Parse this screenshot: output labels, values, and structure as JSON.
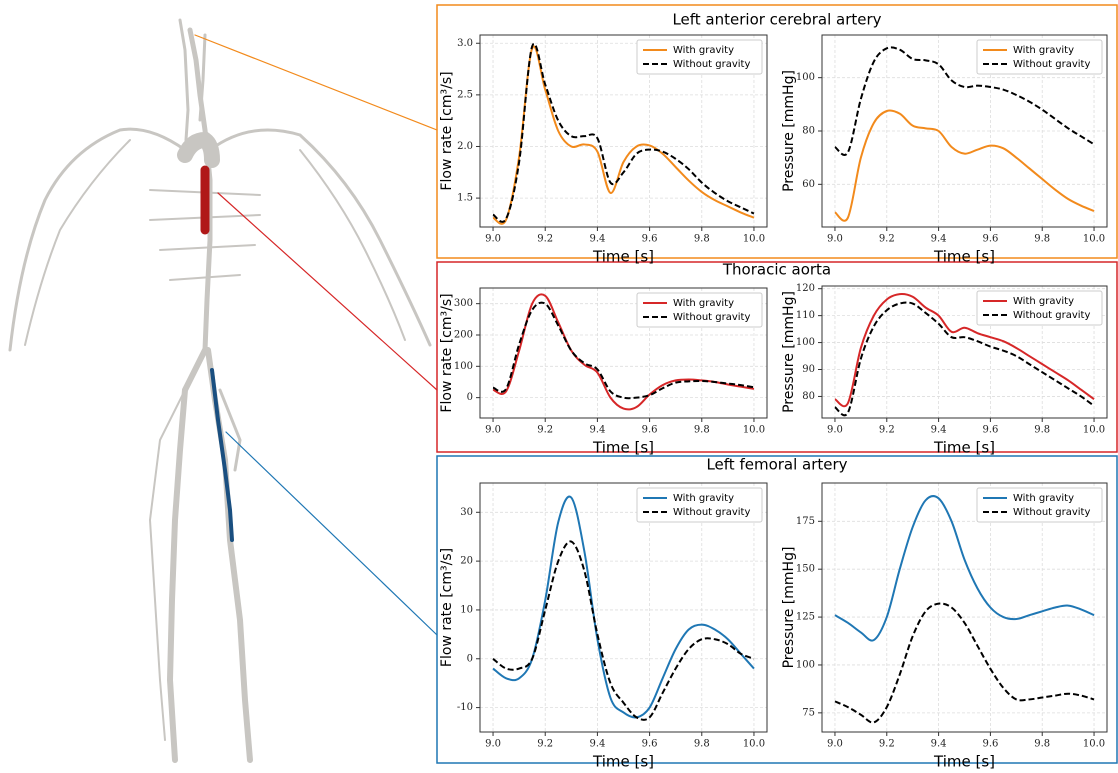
{
  "panels": [
    {
      "title": "Left anterior cerebral artery"
    },
    {
      "title": "Thoracic aorta"
    },
    {
      "title": "Left femoral artery"
    }
  ],
  "chart_data": [
    {
      "type": "line",
      "xlabel": "Time [s]",
      "ylabel": "Flow rate [cm³/s]",
      "legend": "upper right",
      "grid": true,
      "x": [
        9.0,
        9.05,
        9.1,
        9.15,
        9.2,
        9.25,
        9.3,
        9.35,
        9.4,
        9.45,
        9.5,
        9.55,
        9.6,
        9.65,
        9.7,
        9.75,
        9.8,
        9.85,
        9.9,
        9.95,
        10.0
      ],
      "xlim": [
        8.95,
        10.05
      ],
      "xticks": [
        {
          "value": 9,
          "label": "9.0"
        },
        9.2,
        9.4,
        9.6,
        9.8,
        {
          "value": 10,
          "label": "10.0"
        }
      ],
      "ylim": [
        1.22,
        3.08
      ],
      "yticks": [
        1.5,
        {
          "value": 2,
          "label": "2.0"
        },
        2.5,
        {
          "value": 3,
          "label": "3.0"
        }
      ],
      "series": [
        {
          "name": "With gravity",
          "color": "#f28a1c",
          "linestyle": "solid",
          "values": [
            1.31,
            1.29,
            1.9,
            2.95,
            2.55,
            2.15,
            2.0,
            2.02,
            1.95,
            1.55,
            1.85,
            2.0,
            2.01,
            1.93,
            1.8,
            1.67,
            1.56,
            1.48,
            1.42,
            1.36,
            1.31
          ]
        },
        {
          "name": "Without gravity",
          "color": "#000000",
          "linestyle": "dashed",
          "values": [
            1.34,
            1.3,
            1.85,
            2.97,
            2.6,
            2.25,
            2.1,
            2.1,
            2.08,
            1.65,
            1.75,
            1.93,
            1.97,
            1.95,
            1.88,
            1.78,
            1.65,
            1.55,
            1.47,
            1.41,
            1.35
          ]
        }
      ]
    },
    {
      "type": "line",
      "xlabel": "Time [s]",
      "ylabel": "Pressure [mmHg]",
      "legend": "upper right",
      "grid": true,
      "x": [
        9.0,
        9.05,
        9.1,
        9.15,
        9.2,
        9.25,
        9.3,
        9.35,
        9.4,
        9.45,
        9.5,
        9.55,
        9.6,
        9.65,
        9.7,
        9.75,
        9.8,
        9.85,
        9.9,
        9.95,
        10.0
      ],
      "xlim": [
        8.95,
        10.05
      ],
      "xticks": [
        {
          "value": 9,
          "label": "9.0"
        },
        9.2,
        9.4,
        9.6,
        9.8,
        {
          "value": 10,
          "label": "10.0"
        }
      ],
      "ylim": [
        44,
        116
      ],
      "yticks": [
        60,
        80,
        100
      ],
      "series": [
        {
          "name": "With gravity",
          "color": "#f28a1c",
          "linestyle": "solid",
          "values": [
            49.5,
            47.5,
            70,
            83,
            87.5,
            86.5,
            82,
            81,
            80,
            74,
            71.5,
            73,
            74.5,
            73.5,
            70,
            66,
            62,
            58,
            54.5,
            52,
            50
          ]
        },
        {
          "name": "Without gravity",
          "color": "#000000",
          "linestyle": "dashed",
          "values": [
            74,
            72,
            92,
            106,
            111,
            110.5,
            107,
            106.5,
            105,
            99,
            96.5,
            97,
            96.5,
            95.5,
            93.5,
            91,
            88,
            84.5,
            81,
            78,
            75
          ]
        }
      ]
    },
    {
      "type": "line",
      "xlabel": "Time [s]",
      "ylabel": "Flow rate [cm³/s]",
      "legend": "upper right",
      "grid": true,
      "x": [
        9.0,
        9.05,
        9.1,
        9.15,
        9.2,
        9.25,
        9.3,
        9.35,
        9.4,
        9.45,
        9.5,
        9.55,
        9.6,
        9.65,
        9.7,
        9.75,
        9.8,
        9.85,
        9.9,
        9.95,
        10.0
      ],
      "xlim": [
        8.95,
        10.05
      ],
      "xticks": [
        {
          "value": 9,
          "label": "9.0"
        },
        9.2,
        9.4,
        9.6,
        9.8,
        {
          "value": 10,
          "label": "10.0"
        }
      ],
      "ylim": [
        -65,
        350
      ],
      "yticks": [
        0,
        100,
        200,
        300
      ],
      "series": [
        {
          "name": "With gravity",
          "color": "#d62728",
          "linestyle": "solid",
          "values": [
            25,
            20,
            150,
            300,
            325,
            240,
            150,
            105,
            80,
            0,
            -35,
            -30,
            10,
            40,
            55,
            58,
            55,
            50,
            42,
            35,
            28
          ]
        },
        {
          "name": "Without gravity",
          "color": "#000000",
          "linestyle": "dashed",
          "values": [
            32,
            28,
            170,
            280,
            300,
            230,
            150,
            110,
            90,
            20,
            0,
            0,
            8,
            30,
            48,
            52,
            53,
            50,
            45,
            40,
            33
          ]
        }
      ]
    },
    {
      "type": "line",
      "xlabel": "Time [s]",
      "ylabel": "Pressure [mmHg]",
      "legend": "upper right",
      "grid": true,
      "x": [
        9.0,
        9.05,
        9.1,
        9.15,
        9.2,
        9.25,
        9.3,
        9.35,
        9.4,
        9.45,
        9.5,
        9.55,
        9.6,
        9.65,
        9.7,
        9.75,
        9.8,
        9.85,
        9.9,
        9.95,
        10.0
      ],
      "xlim": [
        8.95,
        10.05
      ],
      "xticks": [
        {
          "value": 9,
          "label": "9.0"
        },
        9.2,
        9.4,
        9.6,
        9.8,
        {
          "value": 10,
          "label": "10.0"
        }
      ],
      "ylim": [
        72,
        121
      ],
      "yticks": [
        80,
        90,
        100,
        110,
        120
      ],
      "series": [
        {
          "name": "With gravity",
          "color": "#d62728",
          "linestyle": "solid",
          "values": [
            79,
            77.5,
            98,
            110,
            116,
            118,
            117,
            113,
            110,
            104,
            105.5,
            103.5,
            102,
            100.5,
            98,
            95,
            92,
            89,
            86,
            82.5,
            79
          ]
        },
        {
          "name": "Without gravity",
          "color": "#000000",
          "linestyle": "dashed",
          "values": [
            76,
            74,
            94,
            106,
            112,
            114.5,
            114.5,
            111,
            107,
            102,
            102,
            100.5,
            98.5,
            97,
            95,
            92,
            89,
            86,
            83,
            80,
            76.5
          ]
        }
      ]
    },
    {
      "type": "line",
      "xlabel": "Time [s]",
      "ylabel": "Flow rate [cm³/s]",
      "legend": "upper right",
      "grid": true,
      "x": [
        9.0,
        9.05,
        9.1,
        9.15,
        9.2,
        9.25,
        9.3,
        9.35,
        9.4,
        9.45,
        9.5,
        9.55,
        9.6,
        9.65,
        9.7,
        9.75,
        9.8,
        9.85,
        9.9,
        9.95,
        10.0
      ],
      "xlim": [
        8.95,
        10.05
      ],
      "xticks": [
        {
          "value": 9,
          "label": "9.0"
        },
        9.2,
        9.4,
        9.6,
        9.8,
        {
          "value": 10,
          "label": "10.0"
        }
      ],
      "ylim": [
        -15,
        36
      ],
      "yticks": [
        -10,
        0,
        10,
        20,
        30
      ],
      "series": [
        {
          "name": "With gravity",
          "color": "#1f77b4",
          "linestyle": "solid",
          "values": [
            -2,
            -4,
            -4,
            0,
            12,
            28,
            33,
            22,
            4,
            -8,
            -11,
            -12,
            -10,
            -4,
            2,
            6,
            7,
            6,
            4,
            1,
            -2
          ]
        },
        {
          "name": "Without gravity",
          "color": "#000000",
          "linestyle": "dashed",
          "values": [
            0,
            -2,
            -2,
            0,
            10,
            20,
            24,
            18,
            5,
            -5,
            -9,
            -12,
            -12,
            -7,
            -2,
            2,
            4,
            4,
            3,
            1,
            0
          ]
        }
      ]
    },
    {
      "type": "line",
      "xlabel": "Time [s]",
      "ylabel": "Pressure [mmHg]",
      "legend": "upper right",
      "grid": true,
      "x": [
        9.0,
        9.05,
        9.1,
        9.15,
        9.2,
        9.25,
        9.3,
        9.35,
        9.4,
        9.45,
        9.5,
        9.55,
        9.6,
        9.65,
        9.7,
        9.75,
        9.8,
        9.85,
        9.9,
        9.95,
        10.0
      ],
      "xlim": [
        8.95,
        10.05
      ],
      "xticks": [
        {
          "value": 9,
          "label": "9.0"
        },
        9.2,
        9.4,
        9.6,
        9.8,
        {
          "value": 10,
          "label": "10.0"
        }
      ],
      "ylim": [
        65,
        195
      ],
      "yticks": [
        75,
        100,
        125,
        150,
        175
      ],
      "series": [
        {
          "name": "With gravity",
          "color": "#1f77b4",
          "linestyle": "solid",
          "values": [
            126,
            122,
            117,
            113,
            125,
            150,
            172,
            186,
            187,
            175,
            155,
            140,
            130,
            125,
            124,
            126,
            128,
            130,
            131,
            129,
            126
          ]
        },
        {
          "name": "Without gravity",
          "color": "#000000",
          "linestyle": "dashed",
          "values": [
            81,
            78,
            74,
            70,
            78,
            95,
            115,
            128,
            132,
            130,
            122,
            110,
            98,
            88,
            82,
            82,
            83,
            84,
            85,
            84,
            82
          ]
        }
      ]
    }
  ]
}
